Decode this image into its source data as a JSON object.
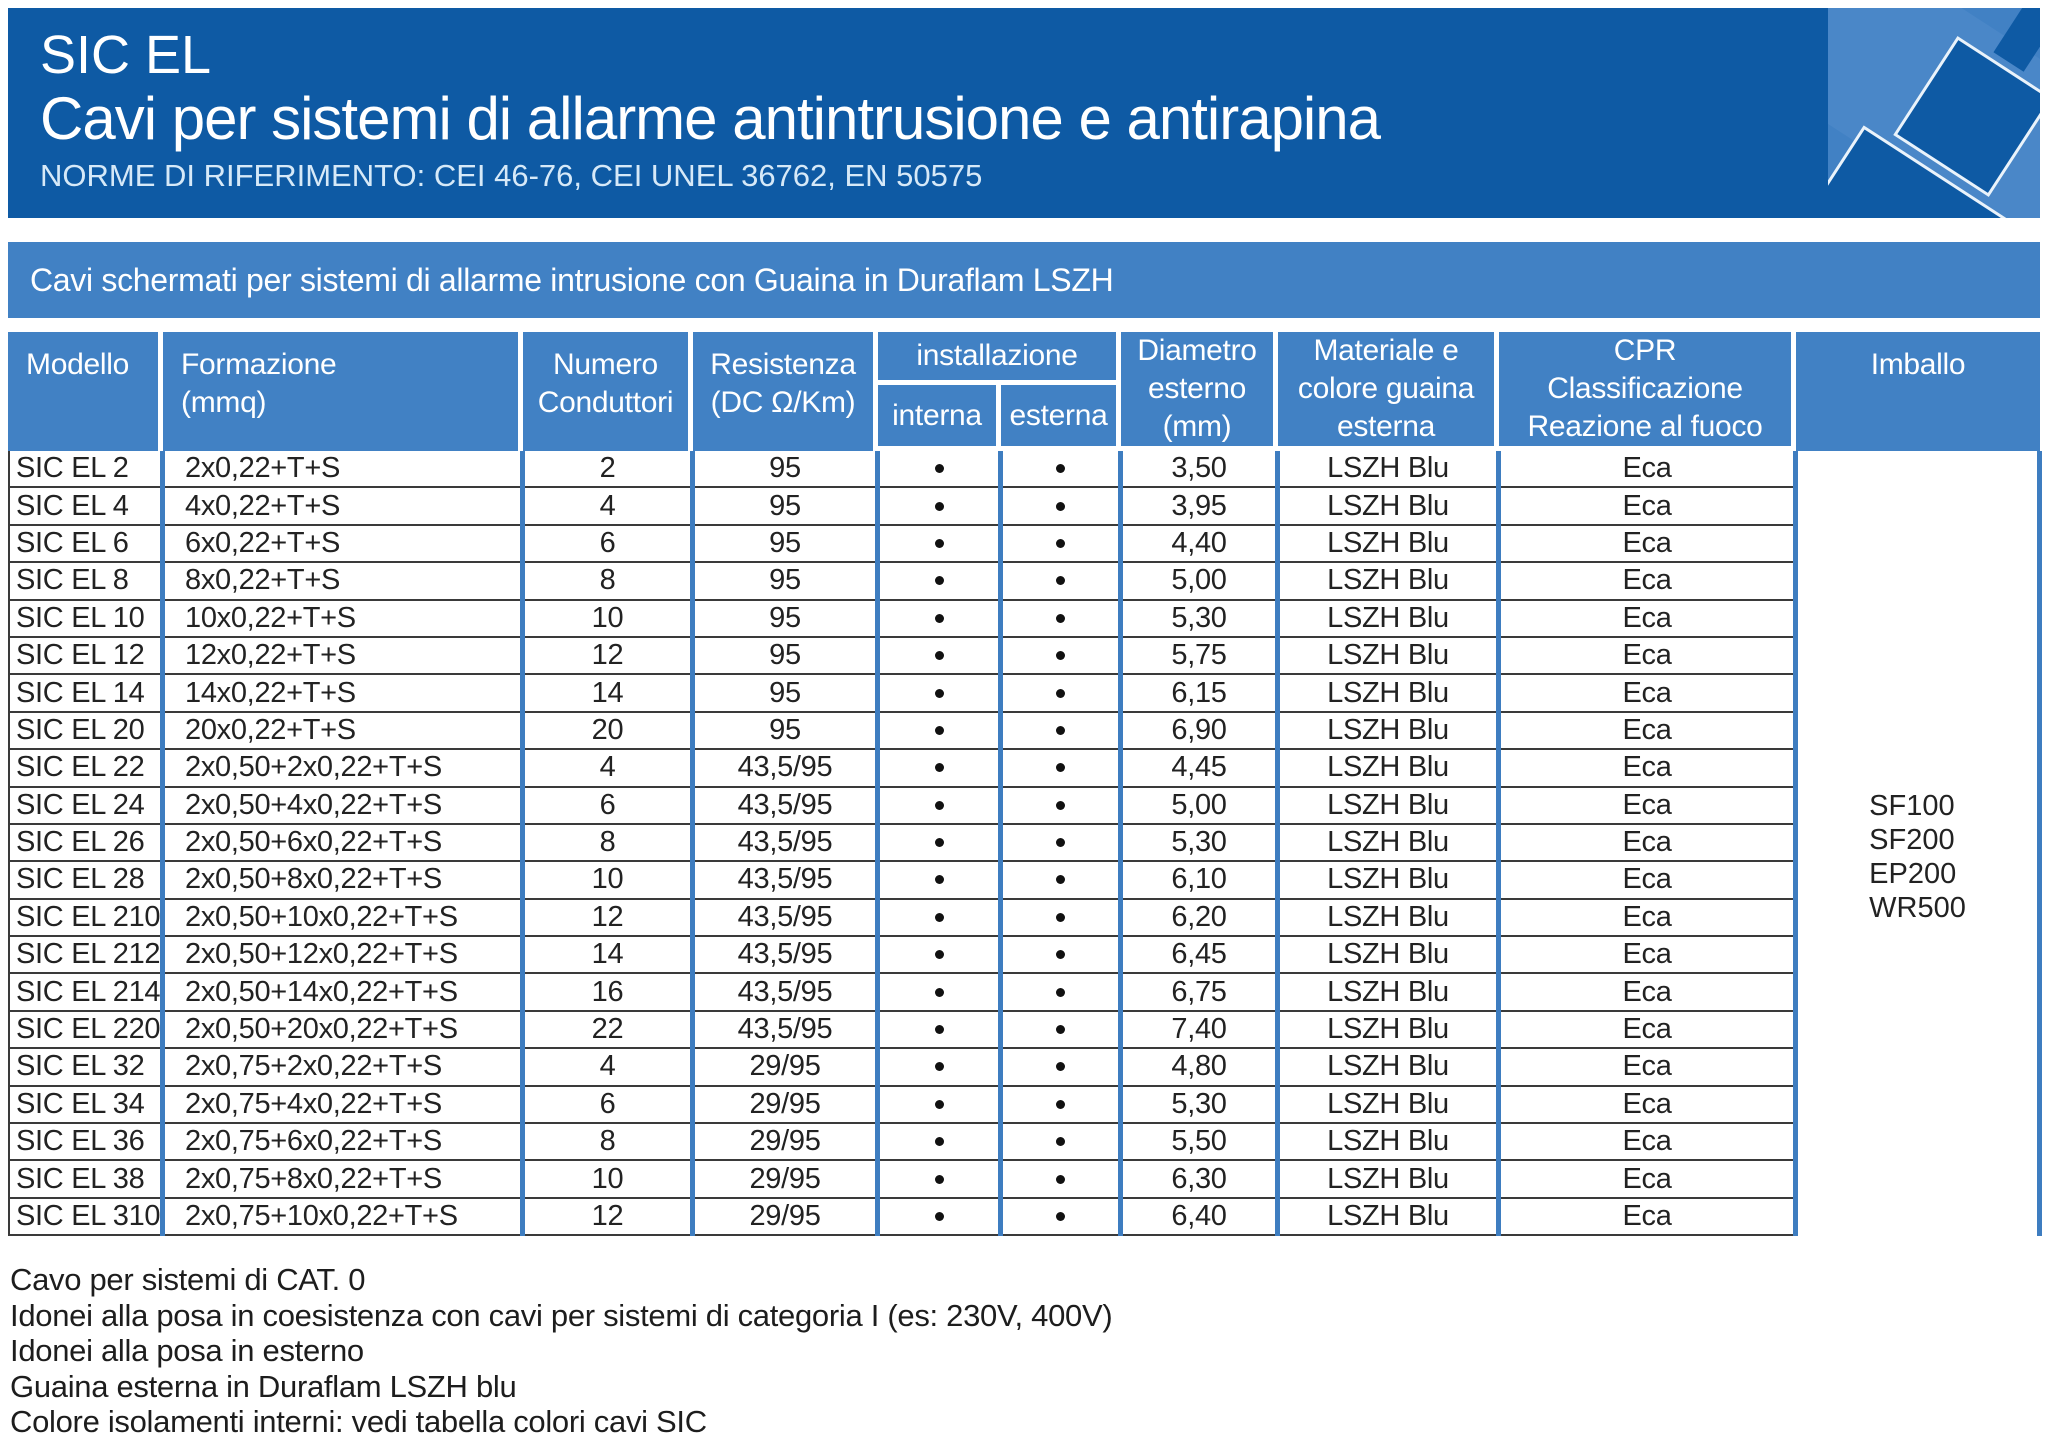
{
  "header": {
    "product": "SIC EL",
    "title": "Cavi per sistemi di allarme antintrusione e antirapina",
    "norms": "NORME DI RIFERIMENTO: CEI 46-76, CEI UNEL 36762, EN 50575",
    "logo_icon": "cable-connector-icon"
  },
  "banner": "Cavi schermati per sistemi di allarme intrusione con Guaina in Duraflam LSZH",
  "colors": {
    "banner_bg": "#0E5AA4",
    "accent_blue": "#4181C4",
    "grid_blue": "#3E7DC0",
    "row_line": "#3a3a3a",
    "body_text": "#222222"
  },
  "table": {
    "headers": {
      "modello": "Modello",
      "formazione_1": "Formazione",
      "formazione_2": "(mmq)",
      "numero_1": "Numero",
      "numero_2": "Conduttori",
      "resistenza_1": "Resistenza",
      "resistenza_2": "(DC Ω/Km)",
      "installazione": "installazione",
      "interna": "interna",
      "esterna": "esterna",
      "diametro_1": "Diametro",
      "diametro_2": "esterno",
      "diametro_3": "(mm)",
      "materiale_1": "Materiale e",
      "materiale_2": "colore guaina",
      "materiale_3": "esterna",
      "cpr_1": "CPR",
      "cpr_2": "Classificazione",
      "cpr_3": "Reazione al fuoco",
      "imballo": "Imballo"
    },
    "rows": [
      {
        "model": "SIC EL 2",
        "formation": "2x0,22+T+S",
        "conductors": "2",
        "resistance": "95",
        "interna": true,
        "esterna": true,
        "diameter": "3,50",
        "sheath": "LSZH Blu",
        "cpr": "Eca"
      },
      {
        "model": "SIC EL 4",
        "formation": "4x0,22+T+S",
        "conductors": "4",
        "resistance": "95",
        "interna": true,
        "esterna": true,
        "diameter": "3,95",
        "sheath": "LSZH Blu",
        "cpr": "Eca"
      },
      {
        "model": "SIC EL 6",
        "formation": "6x0,22+T+S",
        "conductors": "6",
        "resistance": "95",
        "interna": true,
        "esterna": true,
        "diameter": "4,40",
        "sheath": "LSZH Blu",
        "cpr": "Eca"
      },
      {
        "model": "SIC EL 8",
        "formation": "8x0,22+T+S",
        "conductors": "8",
        "resistance": "95",
        "interna": true,
        "esterna": true,
        "diameter": "5,00",
        "sheath": "LSZH Blu",
        "cpr": "Eca"
      },
      {
        "model": "SIC EL 10",
        "formation": "10x0,22+T+S",
        "conductors": "10",
        "resistance": "95",
        "interna": true,
        "esterna": true,
        "diameter": "5,30",
        "sheath": "LSZH Blu",
        "cpr": "Eca"
      },
      {
        "model": "SIC EL 12",
        "formation": "12x0,22+T+S",
        "conductors": "12",
        "resistance": "95",
        "interna": true,
        "esterna": true,
        "diameter": "5,75",
        "sheath": "LSZH Blu",
        "cpr": "Eca"
      },
      {
        "model": "SIC EL 14",
        "formation": "14x0,22+T+S",
        "conductors": "14",
        "resistance": "95",
        "interna": true,
        "esterna": true,
        "diameter": "6,15",
        "sheath": "LSZH Blu",
        "cpr": "Eca"
      },
      {
        "model": "SIC EL 20",
        "formation": "20x0,22+T+S",
        "conductors": "20",
        "resistance": "95",
        "interna": true,
        "esterna": true,
        "diameter": "6,90",
        "sheath": "LSZH Blu",
        "cpr": "Eca"
      },
      {
        "model": "SIC EL 22",
        "formation": "2x0,50+2x0,22+T+S",
        "conductors": "4",
        "resistance": "43,5/95",
        "interna": true,
        "esterna": true,
        "diameter": "4,45",
        "sheath": "LSZH Blu",
        "cpr": "Eca"
      },
      {
        "model": "SIC EL 24",
        "formation": "2x0,50+4x0,22+T+S",
        "conductors": "6",
        "resistance": "43,5/95",
        "interna": true,
        "esterna": true,
        "diameter": "5,00",
        "sheath": "LSZH Blu",
        "cpr": "Eca"
      },
      {
        "model": "SIC EL 26",
        "formation": "2x0,50+6x0,22+T+S",
        "conductors": "8",
        "resistance": "43,5/95",
        "interna": true,
        "esterna": true,
        "diameter": "5,30",
        "sheath": "LSZH Blu",
        "cpr": "Eca"
      },
      {
        "model": "SIC EL 28",
        "formation": "2x0,50+8x0,22+T+S",
        "conductors": "10",
        "resistance": "43,5/95",
        "interna": true,
        "esterna": true,
        "diameter": "6,10",
        "sheath": "LSZH Blu",
        "cpr": "Eca"
      },
      {
        "model": "SIC EL 210",
        "formation": "2x0,50+10x0,22+T+S",
        "conductors": "12",
        "resistance": "43,5/95",
        "interna": true,
        "esterna": true,
        "diameter": "6,20",
        "sheath": "LSZH Blu",
        "cpr": "Eca"
      },
      {
        "model": "SIC EL 212",
        "formation": "2x0,50+12x0,22+T+S",
        "conductors": "14",
        "resistance": "43,5/95",
        "interna": true,
        "esterna": true,
        "diameter": "6,45",
        "sheath": "LSZH Blu",
        "cpr": "Eca"
      },
      {
        "model": "SIC EL 214",
        "formation": "2x0,50+14x0,22+T+S",
        "conductors": "16",
        "resistance": "43,5/95",
        "interna": true,
        "esterna": true,
        "diameter": "6,75",
        "sheath": "LSZH Blu",
        "cpr": "Eca"
      },
      {
        "model": "SIC EL 220",
        "formation": "2x0,50+20x0,22+T+S",
        "conductors": "22",
        "resistance": "43,5/95",
        "interna": true,
        "esterna": true,
        "diameter": "7,40",
        "sheath": "LSZH Blu",
        "cpr": "Eca"
      },
      {
        "model": "SIC EL 32",
        "formation": "2x0,75+2x0,22+T+S",
        "conductors": "4",
        "resistance": "29/95",
        "interna": true,
        "esterna": true,
        "diameter": "4,80",
        "sheath": "LSZH Blu",
        "cpr": "Eca"
      },
      {
        "model": "SIC EL 34",
        "formation": "2x0,75+4x0,22+T+S",
        "conductors": "6",
        "resistance": "29/95",
        "interna": true,
        "esterna": true,
        "diameter": "5,30",
        "sheath": "LSZH Blu",
        "cpr": "Eca"
      },
      {
        "model": "SIC EL 36",
        "formation": "2x0,75+6x0,22+T+S",
        "conductors": "8",
        "resistance": "29/95",
        "interna": true,
        "esterna": true,
        "diameter": "5,50",
        "sheath": "LSZH Blu",
        "cpr": "Eca"
      },
      {
        "model": "SIC EL 38",
        "formation": "2x0,75+8x0,22+T+S",
        "conductors": "10",
        "resistance": "29/95",
        "interna": true,
        "esterna": true,
        "diameter": "6,30",
        "sheath": "LSZH Blu",
        "cpr": "Eca"
      },
      {
        "model": "SIC EL 310",
        "formation": "2x0,75+10x0,22+T+S",
        "conductors": "12",
        "resistance": "29/95",
        "interna": true,
        "esterna": true,
        "diameter": "6,40",
        "sheath": "LSZH Blu",
        "cpr": "Eca"
      }
    ],
    "imballo": [
      "SF100",
      "SF200",
      "EP200",
      "WR500"
    ]
  },
  "footnotes": [
    "Cavo per sistemi di CAT. 0",
    "Idonei alla posa in coesistenza con cavi per sistemi di categoria I (es: 230V, 400V)",
    "Idonei alla posa in esterno",
    "Guaina esterna in Duraflam LSZH blu",
    "Colore isolamenti interni: vedi tabella colori cavi SIC"
  ]
}
